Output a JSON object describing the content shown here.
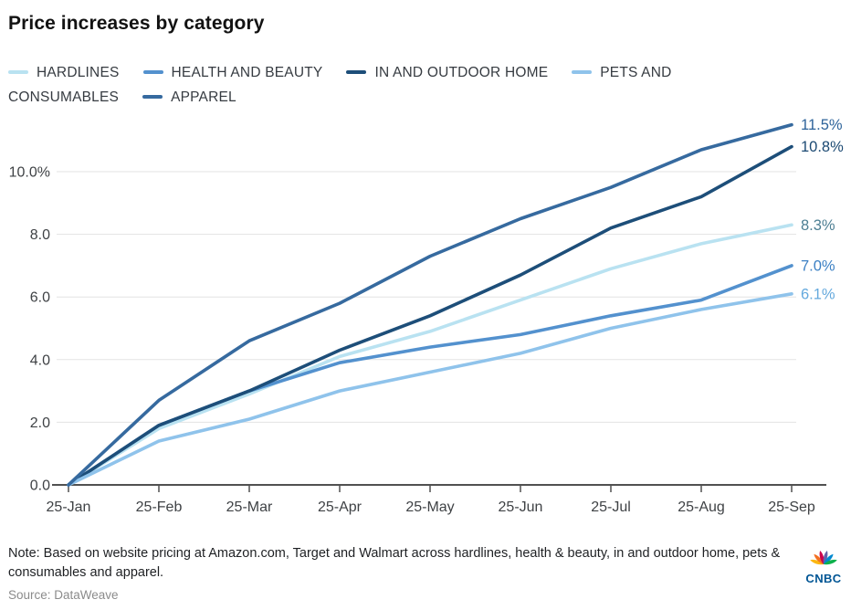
{
  "title": "Price increases by category",
  "note": "Note: Based on website pricing at Amazon.com, Target and Walmart across hardlines, health & beauty, in and outdoor home, pets & consumables and apparel.",
  "source": "Source: DataWeave",
  "logo": {
    "text": "CNBC",
    "text_color": "#005594",
    "feather_colors": [
      "#FCB711",
      "#F37021",
      "#CC004C",
      "#6460AA",
      "#0089D0",
      "#0DB14B"
    ]
  },
  "chart_data": {
    "type": "line",
    "x": [
      "25-Jan",
      "25-Feb",
      "25-Mar",
      "25-Apr",
      "25-May",
      "25-Jun",
      "25-Jul",
      "25-Aug",
      "25-Sep"
    ],
    "series": [
      {
        "name": "HARDLINES",
        "color": "#b9e2f1",
        "label_color": "#4d7f93",
        "end_label": "8.3%",
        "values": [
          0.0,
          1.8,
          2.9,
          4.1,
          4.9,
          5.9,
          6.9,
          7.7,
          8.3
        ]
      },
      {
        "name": "HEALTH AND BEAUTY",
        "color": "#5391ce",
        "label_color": "#3c80c4",
        "end_label": "7.0%",
        "values": [
          0.0,
          1.9,
          3.0,
          3.9,
          4.4,
          4.8,
          5.4,
          5.9,
          7.0
        ]
      },
      {
        "name": "IN AND OUTDOOR HOME",
        "color": "#1d4e79",
        "label_color": "#1c4a73",
        "end_label": "10.8%",
        "values": [
          0.0,
          1.9,
          3.0,
          4.3,
          5.4,
          6.7,
          8.2,
          9.2,
          10.8
        ]
      },
      {
        "name": "PETS AND CONSUMABLES",
        "color": "#8fc3eb",
        "label_color": "#64a9dd",
        "end_label": "6.1%",
        "values": [
          0.0,
          1.4,
          2.1,
          3.0,
          3.6,
          4.2,
          5.0,
          5.6,
          6.1
        ]
      },
      {
        "name": "APPAREL",
        "color": "#366a9f",
        "label_color": "#2d639a",
        "end_label": "11.5%",
        "values": [
          0.0,
          2.7,
          4.6,
          5.8,
          7.3,
          8.5,
          9.5,
          10.7,
          11.5
        ]
      }
    ],
    "y_ticks": [
      {
        "v": 0,
        "label": "0.0"
      },
      {
        "v": 2,
        "label": "2.0"
      },
      {
        "v": 4,
        "label": "4.0"
      },
      {
        "v": 6,
        "label": "6.0"
      },
      {
        "v": 8,
        "label": "8.0"
      },
      {
        "v": 10,
        "label": "10.0%"
      }
    ],
    "ylim": [
      0,
      12
    ],
    "grid": true,
    "legend_position": "top",
    "grid_color": "#e3e3e3",
    "axis_color": "#515151",
    "tick_label_color": "#3f4245"
  }
}
